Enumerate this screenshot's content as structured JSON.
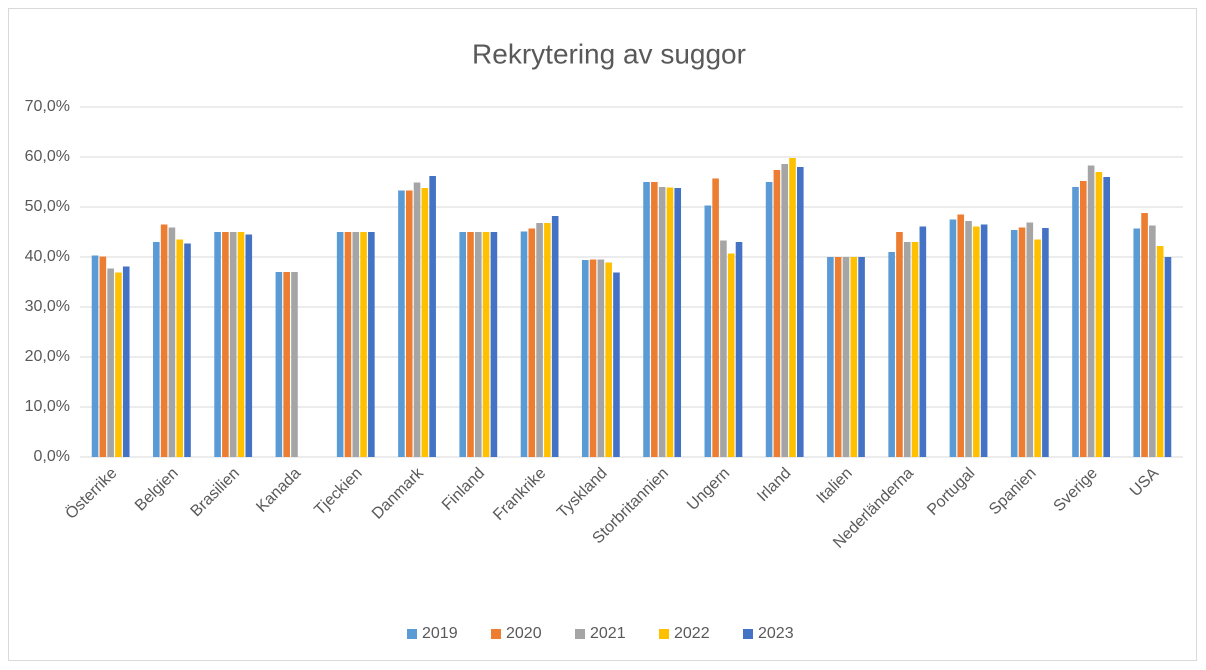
{
  "chart_data": {
    "type": "bar",
    "title": "Rekrytering av suggor",
    "categories": [
      "Österrike",
      "Belgien",
      "Brasilien",
      "Kanada",
      "Tjeckien",
      "Danmark",
      "Finland",
      "Frankrike",
      "Tyskland",
      "Storbritannien",
      "Ungern",
      "Irland",
      "Italien",
      "Nederländerna",
      "Portugal",
      "Spanien",
      "Sverige",
      "USA"
    ],
    "series": [
      {
        "name": "2019",
        "color": "#5b9bd5",
        "values": [
          40.3,
          43.0,
          45.0,
          37.0,
          45.0,
          53.3,
          45.0,
          45.1,
          39.4,
          55.0,
          50.3,
          55.0,
          40.0,
          41.0,
          47.5,
          45.4,
          54.0,
          45.7
        ]
      },
      {
        "name": "2020",
        "color": "#ed7d31",
        "values": [
          40.1,
          46.5,
          45.0,
          37.0,
          45.0,
          53.3,
          45.0,
          45.7,
          39.5,
          55.0,
          55.7,
          57.4,
          40.0,
          45.0,
          48.5,
          45.9,
          55.2,
          48.8
        ]
      },
      {
        "name": "2021",
        "color": "#a5a5a5",
        "values": [
          37.7,
          45.9,
          45.0,
          37.0,
          45.0,
          54.9,
          45.0,
          46.8,
          39.5,
          54.0,
          43.3,
          58.6,
          40.0,
          43.0,
          47.2,
          46.9,
          58.3,
          46.3
        ]
      },
      {
        "name": "2022",
        "color": "#ffc000",
        "values": [
          36.9,
          43.5,
          45.0,
          null,
          45.0,
          53.8,
          45.0,
          46.8,
          38.9,
          53.9,
          40.7,
          59.8,
          40.0,
          43.0,
          46.1,
          43.5,
          57.0,
          42.2
        ]
      },
      {
        "name": "2023",
        "color": "#4472c4",
        "values": [
          38.1,
          42.7,
          44.5,
          null,
          45.0,
          56.2,
          45.0,
          48.2,
          36.9,
          53.8,
          43.0,
          58.0,
          40.0,
          46.1,
          46.5,
          45.8,
          56.0,
          40.0
        ]
      }
    ],
    "ylim": [
      0,
      70
    ],
    "yticks": [
      {
        "value": 0,
        "label": "0,0%"
      },
      {
        "value": 10,
        "label": "10,0%"
      },
      {
        "value": 20,
        "label": "20,0%"
      },
      {
        "value": 30,
        "label": "30,0%"
      },
      {
        "value": 40,
        "label": "40,0%"
      },
      {
        "value": 50,
        "label": "50,0%"
      },
      {
        "value": 60,
        "label": "60,0%"
      },
      {
        "value": 70,
        "label": "70,0%"
      }
    ],
    "grid": true,
    "legend": "bottom"
  }
}
